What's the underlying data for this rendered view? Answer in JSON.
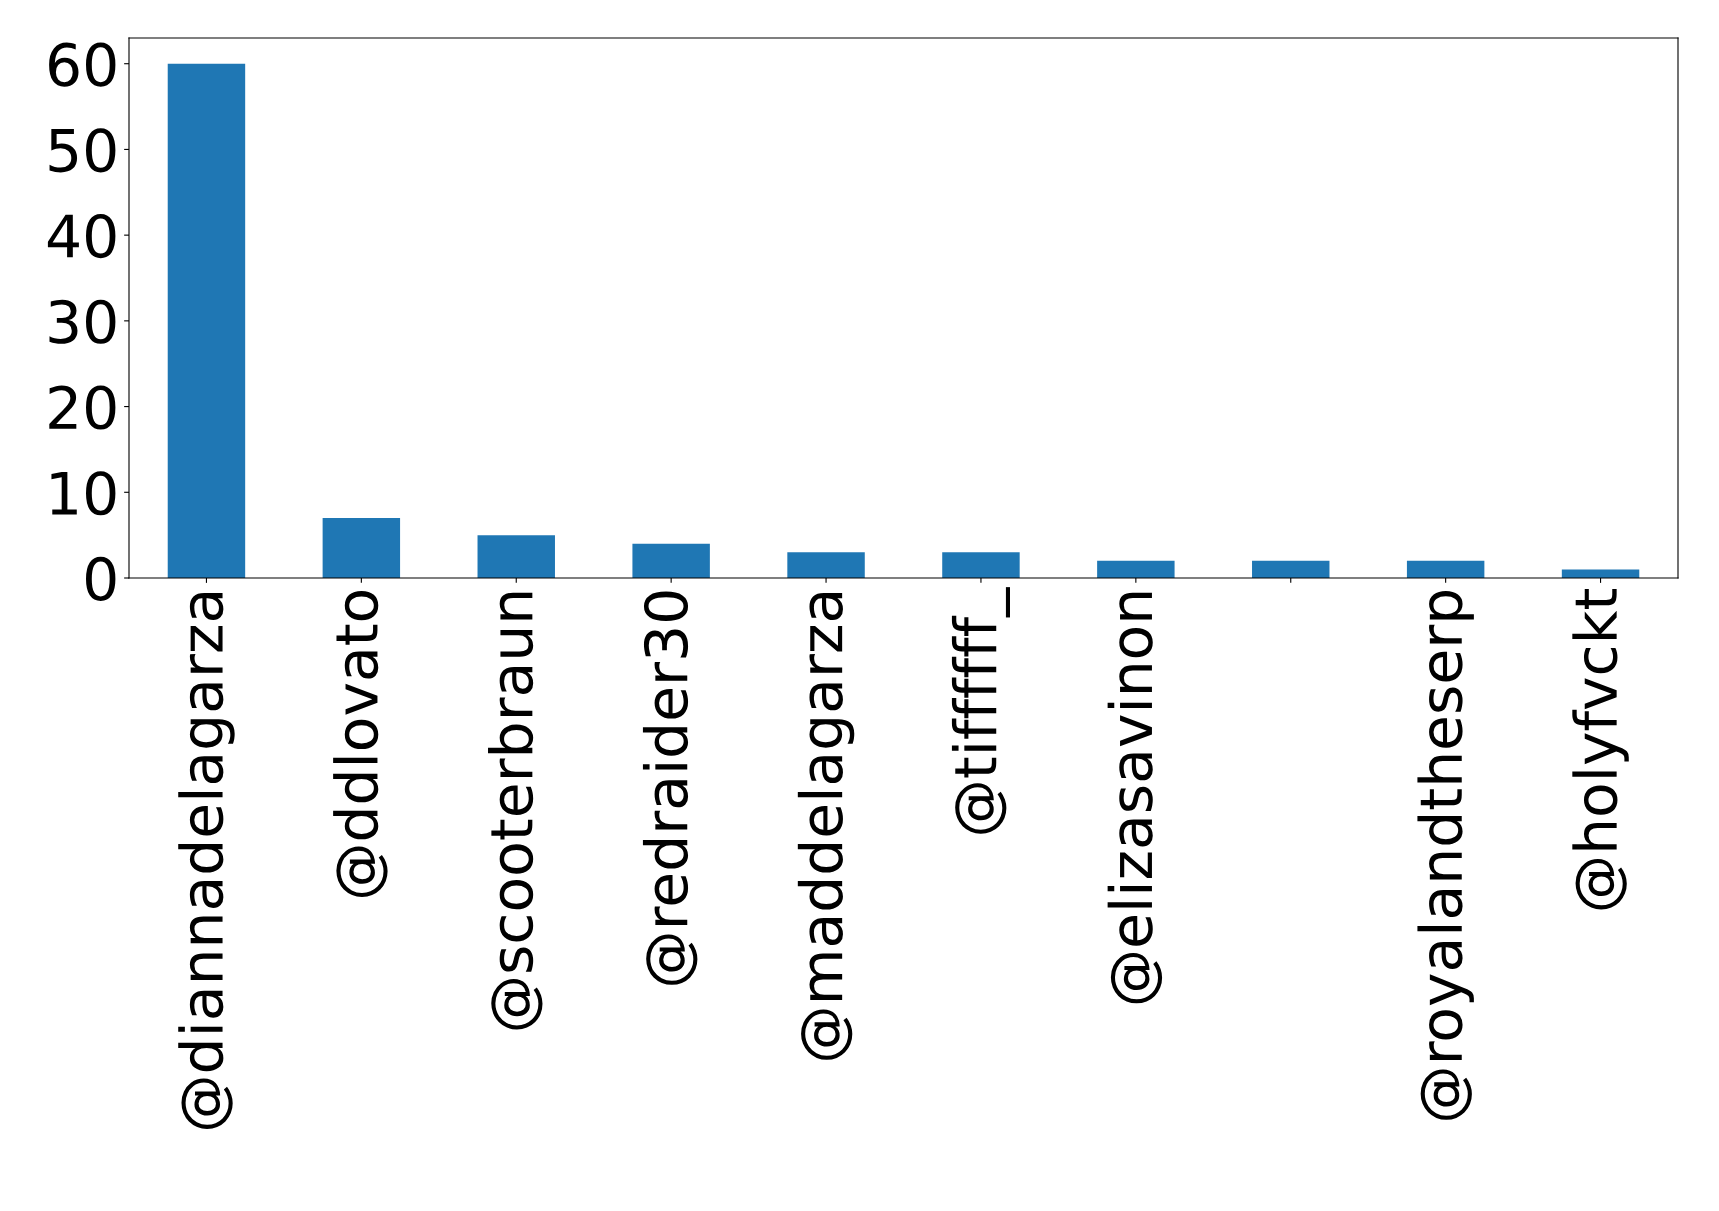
{
  "chart_data": {
    "type": "bar",
    "categories": [
      "@diannadelagarza",
      "@ddlovato",
      "@scooterbraun",
      "@redraider30",
      "@maddelagarza",
      "@tiffffff_",
      "@elizasavinon",
      null,
      "@royalandtheserp",
      "@holyfvckt"
    ],
    "values": [
      60,
      7,
      5,
      4,
      3,
      3,
      2,
      2,
      2,
      1
    ],
    "color": "#1f77b4",
    "ylim": [
      0,
      63
    ],
    "yticks": [
      0,
      10,
      20,
      30,
      40,
      50,
      60
    ],
    "grid": false,
    "legend": false
  }
}
